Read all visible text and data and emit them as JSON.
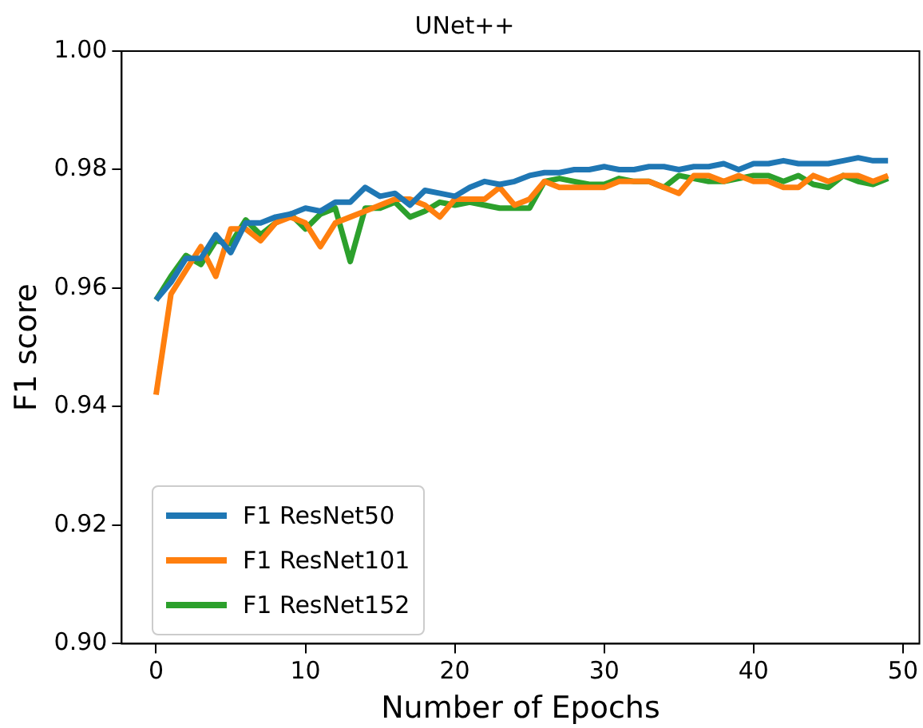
{
  "chart_data": {
    "type": "line",
    "title": "UNet++",
    "xlabel": "Number of Epochs",
    "ylabel": "F1 score",
    "x": [
      0,
      1,
      2,
      3,
      4,
      5,
      6,
      7,
      8,
      9,
      10,
      11,
      12,
      13,
      14,
      15,
      16,
      17,
      18,
      19,
      20,
      21,
      22,
      23,
      24,
      25,
      26,
      27,
      28,
      29,
      30,
      31,
      32,
      33,
      34,
      35,
      36,
      37,
      38,
      39,
      40,
      41,
      42,
      43,
      44,
      45,
      46,
      47,
      48,
      49
    ],
    "xlim": [
      -2.3,
      51.1
    ],
    "xticks": [
      0,
      10,
      20,
      30,
      40,
      50
    ],
    "ylim": [
      0.9,
      1.0
    ],
    "yticks": [
      {
        "value": 0.9,
        "label": "0.90"
      },
      {
        "value": 0.92,
        "label": "0.92"
      },
      {
        "value": 0.94,
        "label": "0.94"
      },
      {
        "value": 0.96,
        "label": "0.96"
      },
      {
        "value": 0.98,
        "label": "0.98"
      },
      {
        "value": 1.0,
        "label": "1.00"
      }
    ],
    "grid": false,
    "legend": "bottom left",
    "marker": "none",
    "line_style": "solid",
    "series": [
      {
        "name": "F1 ResNet50",
        "color": "#1f77b4",
        "values": [
          0.958,
          0.961,
          0.965,
          0.965,
          0.969,
          0.966,
          0.971,
          0.971,
          0.972,
          0.9725,
          0.9735,
          0.973,
          0.9745,
          0.9745,
          0.977,
          0.9755,
          0.976,
          0.974,
          0.9765,
          0.976,
          0.9755,
          0.977,
          0.978,
          0.9775,
          0.978,
          0.979,
          0.9795,
          0.9795,
          0.98,
          0.98,
          0.9805,
          0.98,
          0.98,
          0.9805,
          0.9805,
          0.98,
          0.9805,
          0.9805,
          0.981,
          0.98,
          0.981,
          0.981,
          0.9815,
          0.981,
          0.981,
          0.981,
          0.9815,
          0.982,
          0.9815,
          0.9815
        ]
      },
      {
        "name": "F1 ResNet101",
        "color": "#ff7f0e",
        "values": [
          0.942,
          0.959,
          0.963,
          0.967,
          0.962,
          0.97,
          0.97,
          0.968,
          0.971,
          0.972,
          0.971,
          0.967,
          0.971,
          0.972,
          0.973,
          0.974,
          0.975,
          0.975,
          0.974,
          0.972,
          0.975,
          0.975,
          0.975,
          0.977,
          0.974,
          0.975,
          0.978,
          0.977,
          0.977,
          0.977,
          0.977,
          0.978,
          0.978,
          0.978,
          0.977,
          0.976,
          0.979,
          0.979,
          0.978,
          0.979,
          0.978,
          0.978,
          0.977,
          0.977,
          0.979,
          0.978,
          0.979,
          0.979,
          0.978,
          0.979
        ]
      },
      {
        "name": "F1 ResNet152",
        "color": "#2ca02c",
        "values": [
          0.958,
          0.962,
          0.9655,
          0.964,
          0.968,
          0.9675,
          0.9715,
          0.969,
          0.971,
          0.9725,
          0.97,
          0.9725,
          0.9735,
          0.9645,
          0.9735,
          0.9735,
          0.9745,
          0.972,
          0.973,
          0.9745,
          0.974,
          0.9745,
          0.974,
          0.9735,
          0.9735,
          0.9735,
          0.978,
          0.9785,
          0.978,
          0.9775,
          0.9775,
          0.9785,
          0.978,
          0.978,
          0.977,
          0.979,
          0.9785,
          0.978,
          0.978,
          0.9785,
          0.979,
          0.979,
          0.978,
          0.979,
          0.9775,
          0.977,
          0.979,
          0.978,
          0.9775,
          0.9785
        ]
      }
    ]
  }
}
